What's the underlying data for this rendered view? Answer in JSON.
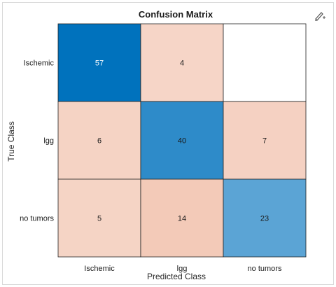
{
  "toolbar": {
    "icon": "edit-plot-icon"
  },
  "chart_data": {
    "type": "heatmap",
    "title": "Confusion Matrix",
    "xlabel": "Predicted Class",
    "ylabel": "True Class",
    "rows": [
      "Ischemic",
      "lgg",
      "no tumors"
    ],
    "columns": [
      "Ischemic",
      "lgg",
      "no tumors"
    ],
    "values": [
      [
        57,
        4,
        null
      ],
      [
        6,
        40,
        7
      ],
      [
        5,
        14,
        23
      ]
    ],
    "diagonal_color": "#0072bd",
    "offdiagonal_color": "#d95319",
    "grid": false
  }
}
